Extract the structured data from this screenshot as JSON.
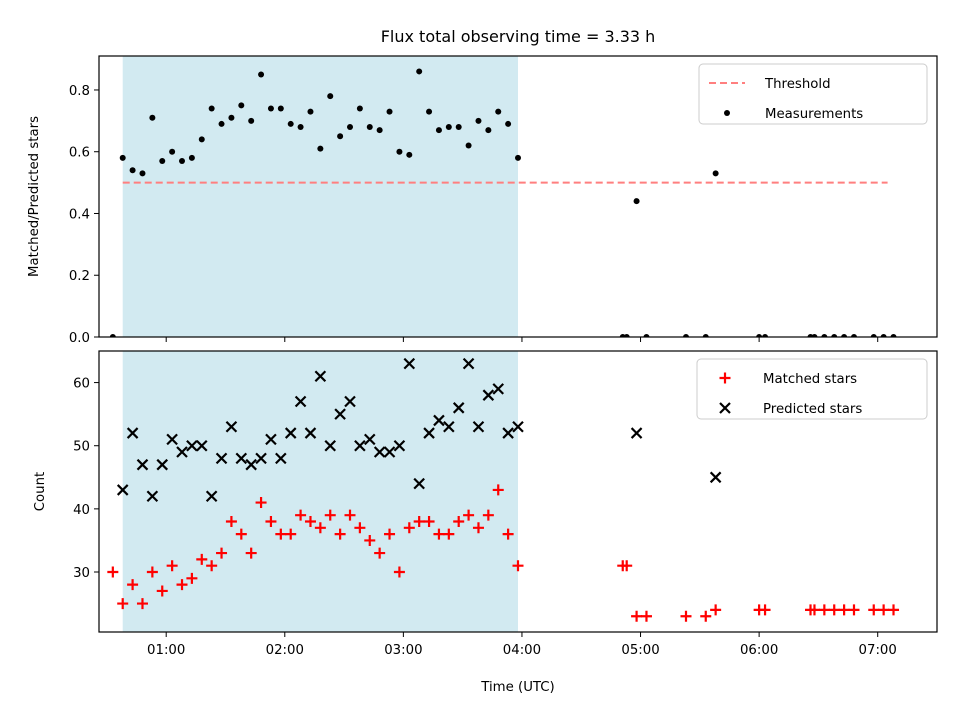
{
  "chart_data": {
    "title": "Flux total observing time = 3.33 h",
    "xlabel": "Time (UTC)",
    "x_ticks": [
      "01:00",
      "02:00",
      "03:00",
      "04:00",
      "05:00",
      "06:00",
      "07:00"
    ],
    "x_range": [
      "00:26",
      "07:30"
    ],
    "shaded_interval": [
      "00:38",
      "03:58"
    ],
    "colors": {
      "shade": "#add8e6",
      "threshold": "#ff7f7f",
      "measurements": "#000000",
      "matched": "#ff0000",
      "predicted": "#000000"
    },
    "panels": [
      {
        "type": "scatter",
        "ylabel": "Matched/Predicted stars",
        "ylim": [
          0,
          0.91
        ],
        "y_ticks": [
          0.0,
          0.2,
          0.4,
          0.6,
          0.8
        ],
        "y_tick_labels": [
          "0.0",
          "0.2",
          "0.4",
          "0.6",
          "0.8"
        ],
        "legend_position": "top-right",
        "threshold": {
          "name": "Threshold",
          "value": 0.5,
          "x_start": "00:38",
          "x_end": "07:05",
          "style": "dashed"
        },
        "series": [
          {
            "name": "Measurements",
            "marker": "dot",
            "points": [
              [
                "00:33",
                0.0
              ],
              [
                "00:38",
                0.58
              ],
              [
                "00:43",
                0.54
              ],
              [
                "00:48",
                0.53
              ],
              [
                "00:53",
                0.71
              ],
              [
                "00:58",
                0.57
              ],
              [
                "01:03",
                0.6
              ],
              [
                "01:08",
                0.57
              ],
              [
                "01:13",
                0.58
              ],
              [
                "01:18",
                0.64
              ],
              [
                "01:23",
                0.74
              ],
              [
                "01:28",
                0.69
              ],
              [
                "01:33",
                0.71
              ],
              [
                "01:38",
                0.75
              ],
              [
                "01:43",
                0.7
              ],
              [
                "01:48",
                0.85
              ],
              [
                "01:53",
                0.74
              ],
              [
                "01:58",
                0.74
              ],
              [
                "02:03",
                0.69
              ],
              [
                "02:08",
                0.68
              ],
              [
                "02:13",
                0.73
              ],
              [
                "02:18",
                0.61
              ],
              [
                "02:23",
                0.78
              ],
              [
                "02:28",
                0.65
              ],
              [
                "02:33",
                0.68
              ],
              [
                "02:38",
                0.74
              ],
              [
                "02:43",
                0.68
              ],
              [
                "02:48",
                0.67
              ],
              [
                "02:53",
                0.73
              ],
              [
                "02:58",
                0.6
              ],
              [
                "03:03",
                0.59
              ],
              [
                "03:08",
                0.86
              ],
              [
                "03:13",
                0.73
              ],
              [
                "03:18",
                0.67
              ],
              [
                "03:23",
                0.68
              ],
              [
                "03:28",
                0.68
              ],
              [
                "03:33",
                0.62
              ],
              [
                "03:38",
                0.7
              ],
              [
                "03:43",
                0.67
              ],
              [
                "03:48",
                0.73
              ],
              [
                "03:53",
                0.69
              ],
              [
                "03:58",
                0.58
              ],
              [
                "04:51",
                0.0
              ],
              [
                "04:53",
                0.0
              ],
              [
                "04:58",
                0.44
              ],
              [
                "05:03",
                0.0
              ],
              [
                "05:23",
                0.0
              ],
              [
                "05:33",
                0.0
              ],
              [
                "05:38",
                0.53
              ],
              [
                "06:00",
                0.0
              ],
              [
                "06:03",
                0.0
              ],
              [
                "06:26",
                0.0
              ],
              [
                "06:28",
                0.0
              ],
              [
                "06:33",
                0.0
              ],
              [
                "06:38",
                0.0
              ],
              [
                "06:43",
                0.0
              ],
              [
                "06:48",
                0.0
              ],
              [
                "06:58",
                0.0
              ],
              [
                "07:03",
                0.0
              ],
              [
                "07:08",
                0.0
              ]
            ]
          }
        ]
      },
      {
        "type": "scatter",
        "ylabel": "Count",
        "ylim": [
          20.5,
          65
        ],
        "y_ticks": [
          30,
          40,
          50,
          60
        ],
        "y_tick_labels": [
          "30",
          "40",
          "50",
          "60"
        ],
        "legend_position": "top-right",
        "series": [
          {
            "name": "Matched stars",
            "marker": "plus",
            "points": [
              [
                "00:33",
                30
              ],
              [
                "00:38",
                25
              ],
              [
                "00:43",
                28
              ],
              [
                "00:48",
                25
              ],
              [
                "00:53",
                30
              ],
              [
                "00:58",
                27
              ],
              [
                "01:03",
                31
              ],
              [
                "01:08",
                28
              ],
              [
                "01:13",
                29
              ],
              [
                "01:18",
                32
              ],
              [
                "01:23",
                31
              ],
              [
                "01:28",
                33
              ],
              [
                "01:33",
                38
              ],
              [
                "01:38",
                36
              ],
              [
                "01:43",
                33
              ],
              [
                "01:48",
                41
              ],
              [
                "01:53",
                38
              ],
              [
                "01:58",
                36
              ],
              [
                "02:03",
                36
              ],
              [
                "02:08",
                39
              ],
              [
                "02:13",
                38
              ],
              [
                "02:18",
                37
              ],
              [
                "02:23",
                39
              ],
              [
                "02:28",
                36
              ],
              [
                "02:33",
                39
              ],
              [
                "02:38",
                37
              ],
              [
                "02:43",
                35
              ],
              [
                "02:48",
                33
              ],
              [
                "02:53",
                36
              ],
              [
                "02:58",
                30
              ],
              [
                "03:03",
                37
              ],
              [
                "03:08",
                38
              ],
              [
                "03:13",
                38
              ],
              [
                "03:18",
                36
              ],
              [
                "03:23",
                36
              ],
              [
                "03:28",
                38
              ],
              [
                "03:33",
                39
              ],
              [
                "03:38",
                37
              ],
              [
                "03:43",
                39
              ],
              [
                "03:48",
                43
              ],
              [
                "03:53",
                36
              ],
              [
                "03:58",
                31
              ],
              [
                "04:51",
                31
              ],
              [
                "04:53",
                31
              ],
              [
                "04:58",
                23
              ],
              [
                "05:03",
                23
              ],
              [
                "05:23",
                23
              ],
              [
                "05:33",
                23
              ],
              [
                "05:38",
                24
              ],
              [
                "06:00",
                24
              ],
              [
                "06:03",
                24
              ],
              [
                "06:26",
                24
              ],
              [
                "06:28",
                24
              ],
              [
                "06:33",
                24
              ],
              [
                "06:38",
                24
              ],
              [
                "06:43",
                24
              ],
              [
                "06:48",
                24
              ],
              [
                "06:58",
                24
              ],
              [
                "07:03",
                24
              ],
              [
                "07:08",
                24
              ]
            ]
          },
          {
            "name": "Predicted stars",
            "marker": "x",
            "points": [
              [
                "00:38",
                43
              ],
              [
                "00:43",
                52
              ],
              [
                "00:48",
                47
              ],
              [
                "00:53",
                42
              ],
              [
                "00:58",
                47
              ],
              [
                "01:03",
                51
              ],
              [
                "01:08",
                49
              ],
              [
                "01:13",
                50
              ],
              [
                "01:18",
                50
              ],
              [
                "01:23",
                42
              ],
              [
                "01:28",
                48
              ],
              [
                "01:33",
                53
              ],
              [
                "01:38",
                48
              ],
              [
                "01:43",
                47
              ],
              [
                "01:48",
                48
              ],
              [
                "01:53",
                51
              ],
              [
                "01:58",
                48
              ],
              [
                "02:03",
                52
              ],
              [
                "02:08",
                57
              ],
              [
                "02:13",
                52
              ],
              [
                "02:18",
                61
              ],
              [
                "02:23",
                50
              ],
              [
                "02:28",
                55
              ],
              [
                "02:33",
                57
              ],
              [
                "02:38",
                50
              ],
              [
                "02:43",
                51
              ],
              [
                "02:48",
                49
              ],
              [
                "02:53",
                49
              ],
              [
                "02:58",
                50
              ],
              [
                "03:03",
                63
              ],
              [
                "03:08",
                44
              ],
              [
                "03:13",
                52
              ],
              [
                "03:18",
                54
              ],
              [
                "03:23",
                53
              ],
              [
                "03:28",
                56
              ],
              [
                "03:33",
                63
              ],
              [
                "03:38",
                53
              ],
              [
                "03:43",
                58
              ],
              [
                "03:48",
                59
              ],
              [
                "03:53",
                52
              ],
              [
                "03:58",
                53
              ],
              [
                "04:58",
                52
              ],
              [
                "05:38",
                45
              ]
            ]
          }
        ]
      }
    ]
  }
}
